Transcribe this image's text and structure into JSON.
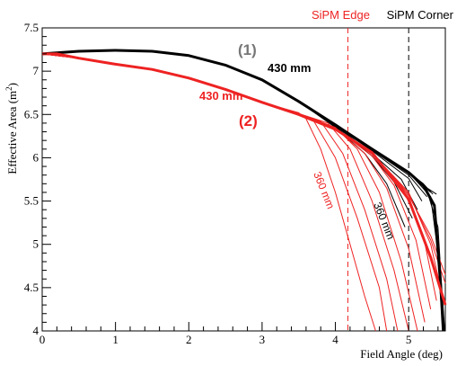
{
  "chart_data": {
    "type": "line",
    "xlabel": "Field Angle (deg)",
    "ylabel": "Effective Area (m",
    "ylabel_sup": "2",
    "ylabel_close": ")",
    "xlim": [
      0,
      5.5
    ],
    "ylim": [
      4,
      7.5
    ],
    "xticks": [
      "0",
      "1",
      "2",
      "3",
      "4",
      "5"
    ],
    "yticks": [
      "4",
      "4.5",
      "5",
      "5.5",
      "6",
      "6.5",
      "7",
      "7.5"
    ],
    "legend": [
      {
        "label": "SiPM Edge",
        "color": "#ee2222"
      },
      {
        "label": "SiPM Corner",
        "color": "#000000"
      }
    ],
    "annotations": {
      "label1": "(1)",
      "label2": "(2)",
      "black_430": "430 mm",
      "red_430": "430 mm",
      "red_360": "360 mm",
      "black_360": "360 mm"
    },
    "vlines": [
      {
        "x": 4.17,
        "color": "#ee2222"
      },
      {
        "x": 5.0,
        "color": "#000000"
      }
    ],
    "series": [
      {
        "color": "#000000",
        "width": 3,
        "x": [
          0,
          0.5,
          1.0,
          1.5,
          2.0,
          2.5,
          3.0,
          3.5,
          4.0,
          4.5,
          5.0,
          5.2,
          5.35,
          5.42,
          5.48
        ],
        "values": [
          7.2,
          7.23,
          7.24,
          7.23,
          7.18,
          7.07,
          6.9,
          6.65,
          6.38,
          6.1,
          5.83,
          5.68,
          5.45,
          4.7,
          4.0
        ]
      },
      {
        "color": "#ee2222",
        "width": 3,
        "x": [
          0,
          0.2,
          0.5,
          1.0,
          1.5,
          2.0,
          2.5,
          3.0,
          3.5,
          4.0,
          4.5,
          5.0,
          5.3,
          5.5
        ],
        "values": [
          7.2,
          7.2,
          7.15,
          7.08,
          7.02,
          6.92,
          6.79,
          6.64,
          6.5,
          6.33,
          6.06,
          5.52,
          4.85,
          4.3
        ]
      },
      {
        "color": "#000000",
        "width": 1,
        "x": [
          0,
          0.5,
          1.0,
          1.5,
          2.0,
          2.5,
          3.0,
          3.5,
          4.0,
          4.4,
          4.7,
          4.95
        ],
        "values": [
          7.2,
          7.23,
          7.24,
          7.23,
          7.18,
          7.07,
          6.9,
          6.65,
          6.35,
          6.05,
          5.7,
          5.2
        ]
      },
      {
        "color": "#000000",
        "width": 1,
        "x": [
          0,
          0.5,
          1.0,
          1.5,
          2.0,
          2.5,
          3.0,
          3.5,
          4.0,
          4.5,
          4.8,
          5.05
        ],
        "values": [
          7.2,
          7.23,
          7.24,
          7.23,
          7.18,
          7.07,
          6.9,
          6.65,
          6.36,
          6.02,
          5.72,
          5.3
        ]
      },
      {
        "color": "#000000",
        "width": 1,
        "x": [
          0,
          0.5,
          1.0,
          1.5,
          2.0,
          2.5,
          3.0,
          3.5,
          4.0,
          4.5,
          4.9,
          5.12
        ],
        "values": [
          7.2,
          7.23,
          7.24,
          7.23,
          7.18,
          7.07,
          6.9,
          6.65,
          6.37,
          6.05,
          5.75,
          5.4
        ]
      },
      {
        "color": "#000000",
        "width": 1,
        "x": [
          0,
          0.5,
          1.0,
          1.5,
          2.0,
          2.5,
          3.0,
          3.5,
          4.0,
          4.5,
          5.0,
          5.18
        ],
        "values": [
          7.2,
          7.23,
          7.24,
          7.23,
          7.18,
          7.07,
          6.9,
          6.65,
          6.37,
          6.08,
          5.76,
          5.5
        ]
      },
      {
        "color": "#000000",
        "width": 1,
        "x": [
          0,
          0.5,
          1.0,
          1.5,
          2.0,
          2.5,
          3.0,
          3.5,
          4.0,
          4.5,
          5.0,
          5.25
        ],
        "values": [
          7.2,
          7.23,
          7.24,
          7.23,
          7.18,
          7.07,
          6.9,
          6.65,
          6.38,
          6.09,
          5.8,
          5.55
        ]
      },
      {
        "color": "#000000",
        "width": 1,
        "x": [
          0,
          0.5,
          1.0,
          1.5,
          2.0,
          2.5,
          3.0,
          3.5,
          4.0,
          4.5,
          5.0,
          5.3
        ],
        "values": [
          7.2,
          7.23,
          7.24,
          7.23,
          7.18,
          7.07,
          6.9,
          6.65,
          6.38,
          6.1,
          5.82,
          5.6
        ]
      },
      {
        "color": "#000000",
        "width": 1,
        "x": [
          0,
          0.5,
          1.0,
          1.5,
          2.0,
          2.5,
          3.0,
          3.5,
          4.0,
          4.5,
          5.0,
          5.2,
          5.33
        ],
        "values": [
          7.2,
          7.23,
          7.24,
          7.23,
          7.18,
          7.07,
          6.9,
          6.65,
          6.38,
          6.1,
          5.83,
          5.7,
          5.58
        ]
      },
      {
        "color": "#000000",
        "width": 1,
        "x": [
          0,
          0.5,
          1.0,
          1.5,
          2.0,
          2.5,
          3.0,
          3.5,
          4.0,
          4.5,
          5.0,
          5.25,
          5.38
        ],
        "values": [
          7.2,
          7.23,
          7.24,
          7.23,
          7.18,
          7.07,
          6.9,
          6.65,
          6.38,
          6.1,
          5.83,
          5.65,
          5.58
        ]
      },
      {
        "color": "#000000",
        "width": 1,
        "x": [
          0,
          0.5,
          1.0,
          1.5,
          2.0,
          2.5,
          3.0,
          3.5,
          4.0,
          4.5,
          5.0,
          5.25,
          5.4,
          5.48
        ],
        "values": [
          7.2,
          7.23,
          7.24,
          7.23,
          7.18,
          7.07,
          6.9,
          6.65,
          6.38,
          6.1,
          5.83,
          5.62,
          5.2,
          4.1
        ]
      },
      {
        "color": "#000000",
        "width": 1,
        "x": [
          0,
          0.5,
          1.0,
          1.5,
          2.0,
          2.5,
          3.0,
          3.5,
          4.0,
          4.5,
          5.0,
          5.3,
          5.4,
          5.46
        ],
        "values": [
          7.2,
          7.23,
          7.24,
          7.23,
          7.18,
          7.07,
          6.9,
          6.65,
          6.38,
          6.1,
          5.83,
          5.55,
          4.9,
          4.0
        ]
      },
      {
        "color": "#ee2222",
        "width": 1,
        "x": [
          0,
          0.5,
          1.0,
          1.5,
          2.0,
          2.5,
          3.0,
          3.5,
          3.6,
          3.8,
          4.0,
          4.2,
          4.4,
          4.55
        ],
        "values": [
          7.2,
          7.15,
          7.08,
          7.02,
          6.92,
          6.79,
          6.64,
          6.52,
          6.45,
          6.1,
          5.6,
          5.0,
          4.4,
          4.0
        ]
      },
      {
        "color": "#ee2222",
        "width": 1,
        "x": [
          0,
          0.5,
          1.0,
          1.5,
          2.0,
          2.5,
          3.0,
          3.5,
          3.7,
          4.0,
          4.3,
          4.6,
          4.7
        ],
        "values": [
          7.2,
          7.15,
          7.08,
          7.02,
          6.92,
          6.79,
          6.64,
          6.51,
          6.43,
          6.0,
          5.3,
          4.5,
          4.0
        ]
      },
      {
        "color": "#ee2222",
        "width": 1,
        "x": [
          0,
          0.5,
          1.0,
          1.5,
          2.0,
          2.5,
          3.0,
          3.5,
          3.8,
          4.1,
          4.4,
          4.7,
          4.85
        ],
        "values": [
          7.2,
          7.15,
          7.08,
          7.02,
          6.92,
          6.79,
          6.64,
          6.51,
          6.42,
          6.05,
          5.4,
          4.6,
          4.0
        ]
      },
      {
        "color": "#ee2222",
        "width": 1,
        "x": [
          0,
          0.5,
          1.0,
          1.5,
          2.0,
          2.5,
          3.0,
          3.5,
          3.9,
          4.2,
          4.5,
          4.8,
          5.0
        ],
        "values": [
          7.2,
          7.15,
          7.08,
          7.02,
          6.92,
          6.79,
          6.64,
          6.51,
          6.4,
          6.1,
          5.5,
          4.7,
          4.0
        ]
      },
      {
        "color": "#ee2222",
        "width": 1,
        "x": [
          0,
          0.5,
          1.0,
          1.5,
          2.0,
          2.5,
          3.0,
          3.5,
          4.0,
          4.3,
          4.6,
          4.9,
          5.12
        ],
        "values": [
          7.2,
          7.15,
          7.08,
          7.02,
          6.92,
          6.79,
          6.64,
          6.51,
          6.35,
          6.1,
          5.6,
          4.8,
          4.0
        ]
      },
      {
        "color": "#ee2222",
        "width": 1,
        "x": [
          0,
          0.5,
          1.0,
          1.5,
          2.0,
          2.5,
          3.0,
          3.5,
          4.0,
          4.4,
          4.7,
          5.0,
          5.22
        ],
        "values": [
          7.2,
          7.15,
          7.08,
          7.02,
          6.92,
          6.79,
          6.64,
          6.51,
          6.34,
          6.05,
          5.65,
          4.95,
          4.1
        ]
      },
      {
        "color": "#ee2222",
        "width": 1,
        "x": [
          0,
          0.5,
          1.0,
          1.5,
          2.0,
          2.5,
          3.0,
          3.5,
          4.0,
          4.5,
          4.8,
          5.1,
          5.3
        ],
        "values": [
          7.2,
          7.15,
          7.08,
          7.02,
          6.92,
          6.79,
          6.64,
          6.51,
          6.34,
          6.02,
          5.68,
          5.05,
          4.25
        ]
      },
      {
        "color": "#ee2222",
        "width": 1,
        "x": [
          0,
          0.5,
          1.0,
          1.5,
          2.0,
          2.5,
          3.0,
          3.5,
          4.0,
          4.5,
          4.9,
          5.2,
          5.38
        ],
        "values": [
          7.2,
          7.15,
          7.08,
          7.02,
          6.92,
          6.79,
          6.64,
          6.51,
          6.34,
          6.04,
          5.68,
          5.1,
          4.35
        ]
      },
      {
        "color": "#ee2222",
        "width": 1,
        "x": [
          0,
          0.5,
          1.0,
          1.5,
          2.0,
          2.5,
          3.0,
          3.5,
          4.0,
          4.5,
          5.0,
          5.3,
          5.45
        ],
        "values": [
          7.2,
          7.15,
          7.08,
          7.02,
          6.92,
          6.79,
          6.64,
          6.51,
          6.34,
          6.05,
          5.6,
          5.0,
          4.45
        ]
      },
      {
        "color": "#ee2222",
        "width": 1,
        "x": [
          0,
          0.5,
          1.0,
          1.5,
          2.0,
          2.5,
          3.0,
          3.5,
          4.0,
          4.5,
          5.0,
          5.3,
          5.5
        ],
        "values": [
          7.2,
          7.15,
          7.08,
          7.02,
          6.92,
          6.79,
          6.64,
          6.51,
          6.34,
          6.06,
          5.58,
          5.05,
          4.55
        ]
      },
      {
        "color": "#ee2222",
        "width": 1,
        "x": [
          0,
          0.5,
          1.0,
          1.5,
          2.0,
          2.5,
          3.0,
          3.5,
          4.0,
          4.5,
          5.0,
          5.3,
          5.5
        ],
        "values": [
          7.2,
          7.15,
          7.08,
          7.02,
          6.92,
          6.79,
          6.64,
          6.51,
          6.34,
          6.06,
          5.56,
          5.1,
          4.65
        ]
      }
    ]
  }
}
